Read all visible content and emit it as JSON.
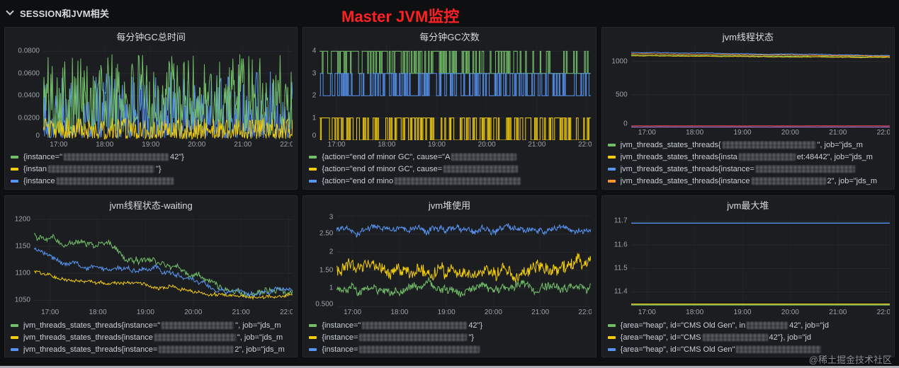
{
  "header": {
    "section_label": "SESSION和JVM相关",
    "title": "Master JVM监控"
  },
  "footer": {
    "watermark": "@稀土掘金技术社区"
  },
  "colors": {
    "page_bg": "#0e0f11",
    "panel_bg": "#1b1d20",
    "panel_border": "#26282c",
    "grid": "#26292d",
    "axis_text": "#9da2a8",
    "title_text": "#d8d9da",
    "legend_text": "#c9d1d9",
    "red_title": "#ff2121",
    "watermark": "#858b93",
    "green": "#73bf69",
    "yellow": "#f2cc0c",
    "blue": "#5794f2",
    "orange": "#ff9830",
    "purple": "#b877d9",
    "pink": "#f2495c"
  },
  "panels": [
    {
      "title": "每分钟GC总时间",
      "legend": [
        {
          "color": "green",
          "segments": [
            {
              "t": "{instance=\""
            },
            {
              "r": 148
            },
            {
              "t": "42\"}"
            }
          ]
        },
        {
          "color": "yellow",
          "segments": [
            {
              "t": "{instan"
            },
            {
              "r": 150
            },
            {
              "t": "\"}"
            }
          ]
        },
        {
          "color": "blue",
          "segments": [
            {
              "t": "{instance"
            },
            {
              "r": 165
            }
          ]
        }
      ]
    },
    {
      "title": "每分钟GC次数",
      "legend": [
        {
          "color": "green",
          "segments": [
            {
              "t": "{action=\"end of minor GC\", cause=\"A"
            },
            {
              "r": 92
            }
          ]
        },
        {
          "color": "yellow",
          "segments": [
            {
              "t": "{action=\"end of minor GC\", cause="
            },
            {
              "r": 105
            }
          ]
        },
        {
          "color": "blue",
          "segments": [
            {
              "t": "{action=\"end of mino"
            },
            {
              "r": 178
            }
          ]
        }
      ]
    },
    {
      "title": "jvm线程状态",
      "legend": [
        {
          "color": "green",
          "segments": [
            {
              "t": "jvm_threads_states_threads{"
            },
            {
              "r": 132
            },
            {
              "t": "\", job=\"jds_m"
            }
          ]
        },
        {
          "color": "yellow",
          "segments": [
            {
              "t": "jvm_threads_states_threads{insta"
            },
            {
              "r": 80
            },
            {
              "t": "et:48442\", job=\"jds_m"
            }
          ]
        },
        {
          "color": "blue",
          "segments": [
            {
              "t": "jvm_threads_states_threads{instance="
            },
            {
              "r": 140
            }
          ]
        },
        {
          "color": "orange",
          "segments": [
            {
              "t": "jvm_threads_states_threads{instance"
            },
            {
              "r": 105
            },
            {
              "t": "2\", job=\"jds_m"
            }
          ]
        }
      ]
    },
    {
      "title": "jvm线程状态-waiting",
      "legend": [
        {
          "color": "green",
          "segments": [
            {
              "t": "jvm_threads_states_threads{instance=\""
            },
            {
              "r": 102
            },
            {
              "t": "\", job=\"jds_m"
            }
          ]
        },
        {
          "color": "yellow",
          "segments": [
            {
              "t": "jvm_threads_states_threads{instance"
            },
            {
              "r": 115
            },
            {
              "t": "\", job=\"jds_m"
            }
          ]
        },
        {
          "color": "blue",
          "segments": [
            {
              "t": "jvm_threads_states_threads{instance="
            },
            {
              "r": 105
            },
            {
              "t": "2\", job=\"jds_m"
            }
          ]
        }
      ]
    },
    {
      "title": "jvm堆使用",
      "legend": [
        {
          "color": "green",
          "segments": [
            {
              "t": "{instance=\""
            },
            {
              "r": 148
            },
            {
              "t": "42\"}"
            }
          ]
        },
        {
          "color": "yellow",
          "segments": [
            {
              "t": "{instance="
            },
            {
              "r": 152
            },
            {
              "t": "\"}"
            }
          ]
        },
        {
          "color": "blue",
          "segments": [
            {
              "t": "{instance="
            },
            {
              "r": 170
            }
          ]
        }
      ]
    },
    {
      "title": "jvm最大堆",
      "legend": [
        {
          "color": "green",
          "segments": [
            {
              "t": "{area=\"heap\", id=\"CMS Old Gen\", in"
            },
            {
              "r": 58
            },
            {
              "t": "42\", job=\"jd"
            }
          ]
        },
        {
          "color": "yellow",
          "segments": [
            {
              "t": "{area=\"heap\", id=\"CMS"
            },
            {
              "r": 92
            },
            {
              "t": "42\"}, job=\"jd"
            }
          ]
        },
        {
          "color": "blue",
          "segments": [
            {
              "t": "{area=\"heap\", id=\"CMS Old Gen\""
            },
            {
              "r": 120
            }
          ]
        }
      ]
    }
  ],
  "chart_data": [
    {
      "title": "每分钟GC总时间",
      "type": "line",
      "x_ticks": [
        "17:00",
        "18:00",
        "19:00",
        "20:00",
        "21:00",
        "22:00"
      ],
      "y_tick_labels": [
        "0.0800",
        "0.0600",
        "0.0400",
        "0.0200",
        "0"
      ],
      "y_tick_values": [
        0.08,
        0.06,
        0.04,
        0.02,
        0
      ],
      "ylim": [
        0,
        0.086
      ],
      "series": [
        {
          "color": "green",
          "type": "spiky",
          "min": 0.004,
          "max": 0.078,
          "pow": 1.25,
          "n": 360,
          "seed": 101
        },
        {
          "color": "yellow",
          "type": "spiky",
          "min": 0.001,
          "max": 0.02,
          "pow": 1.4,
          "n": 360,
          "seed": 102
        },
        {
          "color": "blue",
          "type": "spiky",
          "min": 0.002,
          "max": 0.062,
          "pow": 1.9,
          "n": 360,
          "seed": 103
        }
      ],
      "draw_order": [
        2,
        0,
        1
      ]
    },
    {
      "title": "每分钟GC次数",
      "type": "step-line",
      "x_ticks": [
        "17:00",
        "18:00",
        "19:00",
        "20:00",
        "21:00",
        "22:00"
      ],
      "y_tick_labels": [
        "4",
        "3",
        "2",
        "1",
        "0"
      ],
      "y_tick_values": [
        4,
        3,
        2,
        1,
        0
      ],
      "ylim": [
        0,
        4.3
      ],
      "series": [
        {
          "color": "green",
          "type": "steps",
          "levels": [
            3,
            4
          ],
          "p_start": 0.75,
          "p_end": 0.12,
          "n": 300,
          "seed": 201
        },
        {
          "color": "yellow",
          "type": "steps",
          "levels": [
            0,
            1
          ],
          "p_start": 0.55,
          "p_end": 0.45,
          "n": 300,
          "seed": 202
        },
        {
          "color": "blue",
          "type": "steps",
          "levels": [
            2,
            3
          ],
          "p_start": 0.5,
          "p_end": 0.4,
          "n": 300,
          "seed": 203
        }
      ]
    },
    {
      "title": "jvm线程状态",
      "type": "line",
      "x_ticks": [
        "17:00",
        "18:00",
        "19:00",
        "20:00",
        "21:00",
        "22:00"
      ],
      "y_tick_labels": [
        "1000",
        "500",
        "0"
      ],
      "y_tick_values": [
        1000,
        500,
        0
      ],
      "ylim": [
        0,
        1250
      ],
      "series": [
        {
          "color": "green",
          "type": "walk",
          "points": [
            [
              0,
              1093
            ],
            [
              0.5,
              1078
            ],
            [
              1,
              1062
            ]
          ],
          "noise": 5,
          "n": 320,
          "seed": 301
        },
        {
          "color": "yellow",
          "type": "walk",
          "points": [
            [
              0,
              1082
            ],
            [
              1,
              1056
            ]
          ],
          "noise": 5,
          "n": 320,
          "seed": 302
        },
        {
          "color": "blue",
          "type": "walk",
          "points": [
            [
              0,
              1133
            ],
            [
              0.5,
              1112
            ],
            [
              1,
              1086
            ]
          ],
          "noise": 6,
          "n": 320,
          "seed": 303
        },
        {
          "color": "orange",
          "type": "walk",
          "points": [
            [
              0,
              1113
            ],
            [
              1,
              1078
            ]
          ],
          "noise": 5,
          "n": 320,
          "seed": 304
        },
        {
          "color": "purple",
          "type": "walk",
          "points": [
            [
              0,
              16
            ],
            [
              1,
              16
            ]
          ],
          "noise": 1,
          "n": 160,
          "seed": 305
        },
        {
          "color": "pink",
          "type": "walk",
          "points": [
            [
              0,
              34
            ],
            [
              1,
              34
            ]
          ],
          "noise": 1.5,
          "n": 160,
          "seed": 306
        }
      ]
    },
    {
      "title": "jvm线程状态-waiting",
      "type": "line",
      "x_ticks": [
        "17:00",
        "18:00",
        "19:00",
        "20:00",
        "21:00",
        "22:00"
      ],
      "y_tick_labels": [
        "1200",
        "1150",
        "1100",
        "1050"
      ],
      "y_tick_values": [
        1200,
        1150,
        1100,
        1050
      ],
      "ylim": [
        1035,
        1212
      ],
      "series": [
        {
          "color": "green",
          "type": "walk",
          "points": [
            [
              0,
              1172
            ],
            [
              0.12,
              1158
            ],
            [
              0.3,
              1152
            ],
            [
              0.38,
              1126
            ],
            [
              0.5,
              1120
            ],
            [
              0.62,
              1092
            ],
            [
              0.72,
              1078
            ],
            [
              0.82,
              1060
            ],
            [
              0.9,
              1068
            ],
            [
              1,
              1062
            ]
          ],
          "noise": 9,
          "n": 340,
          "seed": 401
        },
        {
          "color": "yellow",
          "type": "walk",
          "points": [
            [
              0,
              1103
            ],
            [
              0.15,
              1086
            ],
            [
              0.35,
              1082
            ],
            [
              0.55,
              1072
            ],
            [
              0.7,
              1062
            ],
            [
              0.85,
              1056
            ],
            [
              1,
              1058
            ]
          ],
          "noise": 5,
          "n": 340,
          "seed": 402
        },
        {
          "color": "blue",
          "type": "walk",
          "points": [
            [
              0,
              1150
            ],
            [
              0.08,
              1122
            ],
            [
              0.25,
              1112
            ],
            [
              0.45,
              1108
            ],
            [
              0.6,
              1092
            ],
            [
              0.72,
              1068
            ],
            [
              0.85,
              1058
            ],
            [
              1,
              1072
            ]
          ],
          "noise": 7,
          "n": 340,
          "seed": 403
        }
      ]
    },
    {
      "title": "jvm堆使用",
      "type": "line",
      "x_ticks": [
        "17:00",
        "18:00",
        "19:00",
        "20:00",
        "21:00",
        "22:00"
      ],
      "y_tick_labels": [
        "3",
        "2.50",
        "2",
        "1.50",
        "1",
        "0.500"
      ],
      "y_tick_values": [
        3,
        2.5,
        2,
        1.5,
        1,
        0.5
      ],
      "ylim": [
        0.45,
        3.08
      ],
      "series": [
        {
          "color": "green",
          "type": "walk",
          "points": [
            [
              0,
              0.98
            ],
            [
              0.5,
              1.02
            ],
            [
              1,
              1.06
            ]
          ],
          "noise": 0.17,
          "n": 420,
          "seed": 503
        },
        {
          "color": "yellow",
          "type": "walk",
          "points": [
            [
              0,
              1.52
            ],
            [
              0.5,
              1.47
            ],
            [
              1,
              1.55
            ]
          ],
          "noise": 0.27,
          "n": 420,
          "seed": 502
        },
        {
          "color": "blue",
          "type": "walk",
          "points": [
            [
              0,
              2.58
            ],
            [
              0.3,
              2.63
            ],
            [
              0.6,
              2.6
            ],
            [
              1,
              2.66
            ]
          ],
          "noise": 0.13,
          "n": 420,
          "seed": 501
        }
      ]
    },
    {
      "title": "jvm最大堆",
      "type": "line",
      "x_ticks": [
        "17:00",
        "18:00",
        "19:00",
        "20:00",
        "21:00",
        "22:00"
      ],
      "y_tick_labels": [
        "11.7",
        "11.6",
        "11.5",
        "11.4"
      ],
      "y_tick_values": [
        11.7,
        11.6,
        11.5,
        11.4
      ],
      "ylim": [
        11.33,
        11.735
      ],
      "series": [
        {
          "color": "green",
          "type": "flat",
          "value": 11.345,
          "n": 2,
          "seed": 601
        },
        {
          "color": "yellow",
          "type": "flat",
          "value": 11.349,
          "n": 2,
          "seed": 602
        },
        {
          "color": "blue",
          "type": "flat",
          "value": 11.692,
          "n": 2,
          "seed": 603
        }
      ],
      "draw_order": [
        1,
        0,
        2
      ]
    }
  ]
}
